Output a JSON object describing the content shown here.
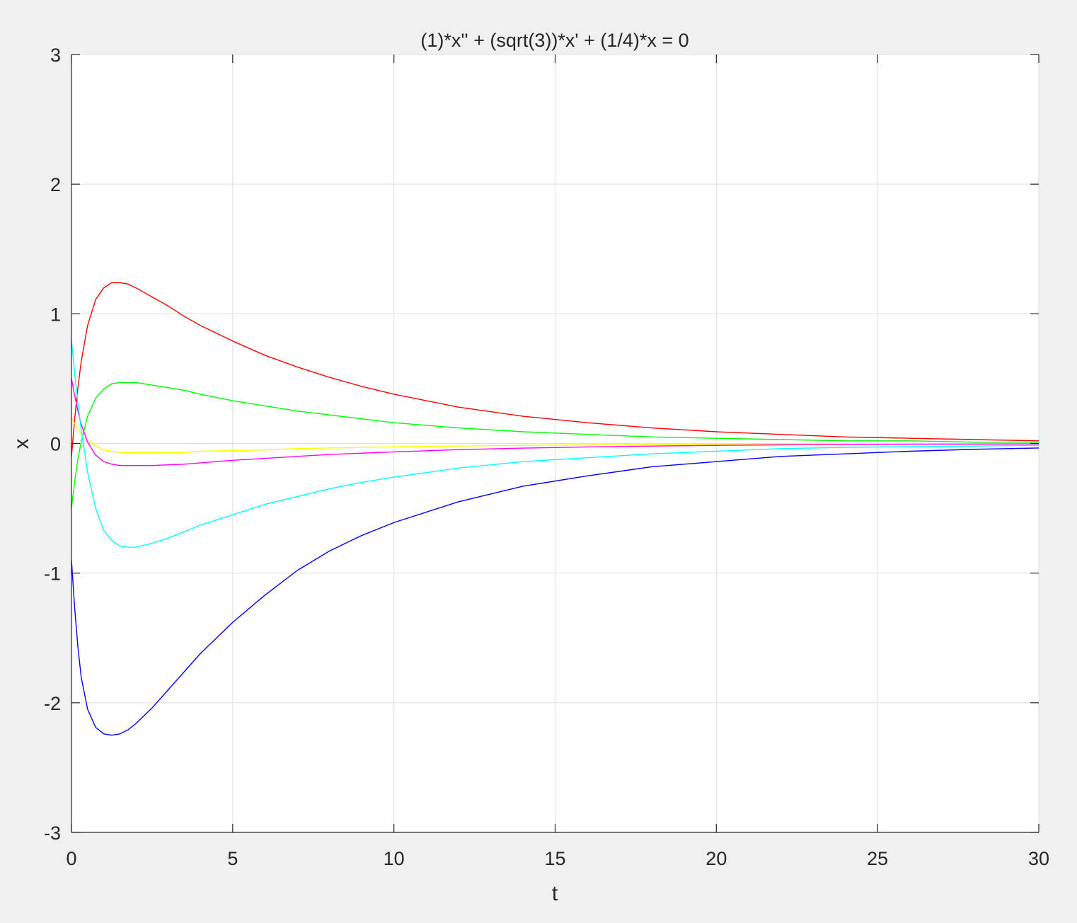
{
  "chart_data": {
    "type": "line",
    "title": "(1)*x'' + (sqrt(3))*x' + (1/4)*x = 0",
    "xlabel": "t",
    "ylabel": "x",
    "xlim": [
      0,
      30
    ],
    "ylim": [
      -3,
      3
    ],
    "xticks": [
      0,
      5,
      10,
      15,
      20,
      25,
      30
    ],
    "xtick_labels": [
      "0",
      "5",
      "10",
      "15",
      "20",
      "25",
      "30"
    ],
    "yticks": [
      -3,
      -2,
      -1,
      0,
      1,
      2,
      3
    ],
    "ytick_labels": [
      "-3",
      "-2",
      "-1",
      "0",
      "1",
      "2",
      "3"
    ],
    "grid": true,
    "legend": "none",
    "x": [
      0,
      0.1,
      0.2,
      0.3,
      0.5,
      0.75,
      1,
      1.25,
      1.5,
      1.75,
      2,
      2.5,
      3,
      3.5,
      4,
      5,
      6,
      7,
      8,
      9,
      10,
      12,
      14,
      16,
      18,
      20,
      22,
      24,
      26,
      28,
      30
    ],
    "series": [
      {
        "color": "#ff0000",
        "values": [
          -0.1,
          0.19,
          0.43,
          0.63,
          0.91,
          1.11,
          1.2,
          1.24,
          1.24,
          1.23,
          1.2,
          1.13,
          1.06,
          0.98,
          0.91,
          0.79,
          0.68,
          0.59,
          0.51,
          0.44,
          0.38,
          0.28,
          0.21,
          0.16,
          0.12,
          0.09,
          0.07,
          0.05,
          0.04,
          0.03,
          0.02
        ]
      },
      {
        "color": "#00ff00",
        "values": [
          -0.5,
          -0.29,
          -0.12,
          0.01,
          0.21,
          0.35,
          0.42,
          0.46,
          0.47,
          0.47,
          0.47,
          0.45,
          0.43,
          0.41,
          0.38,
          0.33,
          0.29,
          0.25,
          0.22,
          0.19,
          0.16,
          0.12,
          0.09,
          0.07,
          0.05,
          0.04,
          0.03,
          0.02,
          0.02,
          0.01,
          0.01
        ]
      },
      {
        "color": "#ffff00",
        "values": [
          0.2,
          0.15,
          0.11,
          0.07,
          0.02,
          -0.02,
          -0.05,
          -0.06,
          -0.07,
          -0.07,
          -0.07,
          -0.07,
          -0.07,
          -0.07,
          -0.06,
          -0.055,
          -0.05,
          -0.04,
          -0.035,
          -0.03,
          -0.026,
          -0.02,
          -0.015,
          -0.011,
          -0.008,
          -0.006,
          -0.004,
          -0.003,
          -0.002,
          -0.002,
          -0.001
        ]
      },
      {
        "color": "#ff00ff",
        "values": [
          0.5,
          0.37,
          0.25,
          0.15,
          0.01,
          -0.09,
          -0.14,
          -0.16,
          -0.17,
          -0.17,
          -0.17,
          -0.17,
          -0.165,
          -0.16,
          -0.15,
          -0.13,
          -0.115,
          -0.1,
          -0.085,
          -0.075,
          -0.065,
          -0.048,
          -0.036,
          -0.027,
          -0.02,
          -0.015,
          -0.011,
          -0.008,
          -0.006,
          -0.005,
          -0.004
        ]
      },
      {
        "color": "#00ffff",
        "values": [
          0.8,
          0.54,
          0.31,
          0.11,
          -0.22,
          -0.5,
          -0.67,
          -0.75,
          -0.79,
          -0.8,
          -0.8,
          -0.77,
          -0.73,
          -0.68,
          -0.63,
          -0.55,
          -0.47,
          -0.41,
          -0.35,
          -0.3,
          -0.26,
          -0.19,
          -0.14,
          -0.11,
          -0.08,
          -0.06,
          -0.04,
          -0.03,
          -0.025,
          -0.02,
          -0.015
        ]
      },
      {
        "color": "#0000ff",
        "values": [
          -0.9,
          -1.27,
          -1.57,
          -1.8,
          -2.05,
          -2.19,
          -2.24,
          -2.25,
          -2.24,
          -2.21,
          -2.16,
          -2.04,
          -1.9,
          -1.76,
          -1.62,
          -1.38,
          -1.17,
          -0.98,
          -0.83,
          -0.71,
          -0.61,
          -0.45,
          -0.33,
          -0.25,
          -0.18,
          -0.14,
          -0.1,
          -0.08,
          -0.06,
          -0.045,
          -0.035
        ]
      }
    ]
  }
}
